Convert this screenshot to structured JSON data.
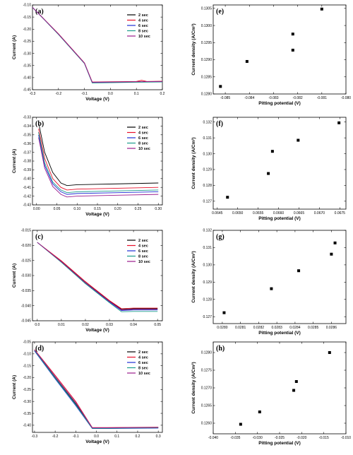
{
  "colors": {
    "2 sec": "#000000",
    "4 sec": "#e8102a",
    "6 sec": "#1f2fd6",
    "8 sec": "#1c9c8c",
    "10 sec": "#9b1c8c"
  },
  "chart_data": [
    {
      "id": "a",
      "panel_label": "(a)",
      "type": "line",
      "xlabel": "Voltage (V)",
      "ylabel": "Current (A)",
      "xlim": [
        -0.3,
        0.2
      ],
      "ylim": [
        -0.45,
        -0.1
      ],
      "xticks": [
        -0.3,
        -0.2,
        -0.1,
        0.0,
        0.1,
        0.2
      ],
      "xticklabels": [
        "-0.3",
        "-0.2",
        "-0.1",
        "0.0",
        "0.1",
        "0.2"
      ],
      "yticks": [
        -0.45,
        -0.4,
        -0.35,
        -0.3,
        -0.25,
        -0.2,
        -0.15,
        -0.1
      ],
      "yticklabels": [
        "-0.45",
        "-0.40",
        "-0.35",
        "-0.30",
        "-0.25",
        "-0.20",
        "-0.15",
        "-0.10"
      ],
      "legend": {
        "position": "top-right"
      },
      "series": [
        {
          "name": "2 sec",
          "x": [
            -0.3,
            -0.2,
            -0.1,
            -0.07,
            0.0,
            0.1,
            0.2
          ],
          "y": [
            -0.11,
            -0.22,
            -0.34,
            -0.42,
            -0.419,
            -0.417,
            -0.416
          ]
        },
        {
          "name": "4 sec",
          "x": [
            -0.3,
            -0.2,
            -0.1,
            -0.07,
            0.0,
            0.1,
            0.12,
            0.14,
            0.2
          ],
          "y": [
            -0.11,
            -0.219,
            -0.339,
            -0.418,
            -0.417,
            -0.416,
            -0.411,
            -0.416,
            -0.415
          ]
        },
        {
          "name": "6 sec",
          "x": [
            -0.3,
            -0.2,
            -0.1,
            -0.07,
            0.0,
            0.1,
            0.2
          ],
          "y": [
            -0.11,
            -0.221,
            -0.341,
            -0.421,
            -0.42,
            -0.418,
            -0.417
          ]
        },
        {
          "name": "8 sec",
          "x": [
            -0.3,
            -0.2,
            -0.1,
            -0.07,
            0.0,
            0.1,
            0.2
          ],
          "y": [
            -0.11,
            -0.222,
            -0.342,
            -0.422,
            -0.421,
            -0.419,
            -0.418
          ]
        },
        {
          "name": "10 sec",
          "x": [
            -0.3,
            -0.2,
            -0.1,
            -0.07,
            0.0,
            0.1,
            0.2
          ],
          "y": [
            -0.11,
            -0.22,
            -0.34,
            -0.419,
            -0.418,
            -0.417,
            -0.416
          ]
        }
      ]
    },
    {
      "id": "e",
      "panel_label": "(e)",
      "type": "scatter",
      "xlabel": "Pitting potential (V)",
      "ylabel": "Current density (A/Cm²)",
      "xlim": [
        -0.0855,
        -0.08
      ],
      "ylim": [
        0.128,
        0.1306
      ],
      "xticks": [
        -0.085,
        -0.084,
        -0.083,
        -0.082,
        -0.081,
        -0.08
      ],
      "xticklabels": [
        "-0.085",
        "-0.084",
        "-0.083",
        "-0.082",
        "-0.081",
        "-0.080"
      ],
      "yticks": [
        0.128,
        0.1285,
        0.129,
        0.1295,
        0.13,
        0.1305
      ],
      "yticklabels": [
        "0.1280",
        "0.1285",
        "0.1290",
        "0.1295",
        "0.1300",
        "0.1305"
      ],
      "series": [
        {
          "x": [
            -0.0852,
            -0.0841,
            -0.0822,
            -0.0822,
            -0.081
          ],
          "y": [
            0.12822,
            0.12895,
            0.12928,
            0.12975,
            0.13048
          ]
        }
      ]
    },
    {
      "id": "b",
      "panel_label": "(b)",
      "type": "line",
      "xlabel": "Voltage (V)",
      "ylabel": "Current (A)",
      "xlim": [
        -0.01,
        0.31
      ],
      "ylim": [
        -0.43,
        -0.33
      ],
      "xticks": [
        0.0,
        0.05,
        0.1,
        0.15,
        0.2,
        0.25,
        0.3
      ],
      "xticklabels": [
        "0.00",
        "0.05",
        "0.10",
        "0.15",
        "0.20",
        "0.25",
        "0.30"
      ],
      "yticks": [
        -0.43,
        -0.42,
        -0.41,
        -0.4,
        -0.39,
        -0.38,
        -0.37,
        -0.36,
        -0.35,
        -0.34,
        -0.33
      ],
      "yticklabels": [
        "-0.43",
        "-0.42",
        "-0.41",
        "-0.40",
        "-0.39",
        "-0.38",
        "-0.37",
        "-0.36",
        "-0.35",
        "-0.34",
        "-0.33"
      ],
      "legend": {
        "position": "top-right"
      },
      "series": [
        {
          "name": "2 sec",
          "x": [
            0.005,
            0.02,
            0.04,
            0.06,
            0.075,
            0.1,
            0.2,
            0.3
          ],
          "y": [
            -0.336,
            -0.37,
            -0.393,
            -0.405,
            -0.408,
            -0.407,
            -0.406,
            -0.405
          ]
        },
        {
          "name": "4 sec",
          "x": [
            0.005,
            0.02,
            0.04,
            0.06,
            0.075,
            0.1,
            0.2,
            0.3
          ],
          "y": [
            -0.343,
            -0.377,
            -0.4,
            -0.41,
            -0.413,
            -0.412,
            -0.411,
            -0.41
          ]
        },
        {
          "name": "6 sec",
          "x": [
            0.005,
            0.02,
            0.04,
            0.06,
            0.075,
            0.1,
            0.2,
            0.3
          ],
          "y": [
            -0.35,
            -0.385,
            -0.406,
            -0.415,
            -0.418,
            -0.417,
            -0.416,
            -0.415
          ]
        },
        {
          "name": "8 sec",
          "x": [
            0.005,
            0.02,
            0.04,
            0.06,
            0.075,
            0.1,
            0.2,
            0.3
          ],
          "y": [
            -0.347,
            -0.382,
            -0.404,
            -0.413,
            -0.416,
            -0.415,
            -0.414,
            -0.413
          ]
        },
        {
          "name": "10 sec",
          "x": [
            0.005,
            0.02,
            0.04,
            0.06,
            0.075,
            0.1,
            0.2,
            0.3
          ],
          "y": [
            -0.353,
            -0.388,
            -0.409,
            -0.418,
            -0.421,
            -0.42,
            -0.419,
            -0.418
          ]
        }
      ]
    },
    {
      "id": "f",
      "panel_label": "(f)",
      "type": "scatter",
      "xlabel": "Pitting potential (V)",
      "ylabel": "Current density (A/Cm²)",
      "xlim": [
        0.0644,
        0.06765
      ],
      "ylim": [
        0.1265,
        0.1323
      ],
      "xticks": [
        0.0645,
        0.065,
        0.0655,
        0.066,
        0.0665,
        0.067,
        0.0675
      ],
      "xticklabels": [
        "0.0645",
        "0.0650",
        "0.0655",
        "0.0660",
        "0.0665",
        "0.0670",
        "0.0675"
      ],
      "yticks": [
        0.127,
        0.128,
        0.129,
        0.13,
        0.131,
        0.132
      ],
      "yticklabels": [
        "0.127",
        "0.128",
        "0.129",
        "0.130",
        "0.131",
        "0.132"
      ],
      "series": [
        {
          "x": [
            0.06475,
            0.06575,
            0.06585,
            0.06648,
            0.06748
          ],
          "y": [
            0.12725,
            0.12875,
            0.13015,
            0.13085,
            0.13195
          ]
        }
      ]
    },
    {
      "id": "c",
      "panel_label": "(c)",
      "type": "line",
      "xlabel": "Voltage (V)",
      "ylabel": "Current (A)",
      "xlim": [
        -0.002,
        0.052
      ],
      "ylim": [
        -0.045,
        -0.015
      ],
      "xticks": [
        0.0,
        0.01,
        0.02,
        0.03,
        0.04,
        0.05
      ],
      "xticklabels": [
        "0.0",
        "0.01",
        "0.02",
        "0.03",
        "0.04",
        "0.05"
      ],
      "yticks": [
        -0.045,
        -0.04,
        -0.035,
        -0.03,
        -0.025,
        -0.02,
        -0.015
      ],
      "yticklabels": [
        "-0.045",
        "-0.040",
        "-0.035",
        "-0.030",
        "-0.025",
        "-0.020",
        "-0.015"
      ],
      "legend": {
        "position": "top-right"
      },
      "series": [
        {
          "name": "2 sec",
          "x": [
            0.0,
            0.01,
            0.02,
            0.03,
            0.035,
            0.04,
            0.05
          ],
          "y": [
            -0.019,
            -0.0253,
            -0.0323,
            -0.0385,
            -0.0412,
            -0.041,
            -0.041
          ]
        },
        {
          "name": "4 sec",
          "x": [
            0.0,
            0.01,
            0.02,
            0.03,
            0.035,
            0.04,
            0.05
          ],
          "y": [
            -0.019,
            -0.0251,
            -0.032,
            -0.0383,
            -0.041,
            -0.0408,
            -0.0408
          ]
        },
        {
          "name": "6 sec",
          "x": [
            0.0,
            0.01,
            0.02,
            0.03,
            0.035,
            0.04,
            0.05
          ],
          "y": [
            -0.019,
            -0.0255,
            -0.0325,
            -0.0388,
            -0.0416,
            -0.0414,
            -0.0414
          ]
        },
        {
          "name": "8 sec",
          "x": [
            0.0,
            0.01,
            0.02,
            0.03,
            0.035,
            0.04,
            0.05
          ],
          "y": [
            -0.019,
            -0.0256,
            -0.0327,
            -0.039,
            -0.042,
            -0.0419,
            -0.0419
          ]
        },
        {
          "name": "10 sec",
          "x": [
            0.0,
            0.01,
            0.02,
            0.03,
            0.035,
            0.04,
            0.05
          ],
          "y": [
            -0.019,
            -0.0254,
            -0.0324,
            -0.0386,
            -0.0414,
            -0.0412,
            -0.0412
          ]
        }
      ]
    },
    {
      "id": "g",
      "panel_label": "(g)",
      "type": "scatter",
      "xlabel": "Pitting potential (V)",
      "ylabel": "Current density (A/Cm²)",
      "xlim": [
        0.02795,
        0.02868
      ],
      "ylim": [
        0.1266,
        0.132
      ],
      "xticks": [
        0.028,
        0.0281,
        0.0282,
        0.0283,
        0.0284,
        0.0285,
        0.0286
      ],
      "xticklabels": [
        "0.0280",
        "0.0281",
        "0.0282",
        "0.0283",
        "0.0284",
        "0.0285",
        "0.0286"
      ],
      "yticks": [
        0.127,
        0.128,
        0.129,
        0.13,
        0.131,
        0.132
      ],
      "yticklabels": [
        "0.127",
        "0.128",
        "0.129",
        "0.130",
        "0.131",
        "0.132"
      ],
      "series": [
        {
          "x": [
            0.02801,
            0.02827,
            0.02842,
            0.0286,
            0.02862
          ],
          "y": [
            0.12723,
            0.12862,
            0.12966,
            0.13062,
            0.13127
          ]
        }
      ]
    },
    {
      "id": "d",
      "panel_label": "(d)",
      "type": "line",
      "xlabel": "Voltage (V)",
      "ylabel": "Current (A)",
      "xlim": [
        -0.31,
        0.32
      ],
      "ylim": [
        -0.43,
        -0.05
      ],
      "xticks": [
        -0.3,
        -0.2,
        -0.1,
        0.0,
        0.1,
        0.2,
        0.3
      ],
      "xticklabels": [
        "-0.3",
        "-0.2",
        "-0.1",
        "0.0",
        "0.1",
        "0.2",
        "0.3"
      ],
      "yticks": [
        -0.4,
        -0.35,
        -0.3,
        -0.25,
        -0.2,
        -0.15,
        -0.1,
        -0.05
      ],
      "yticklabels": [
        "-0.40",
        "-0.35",
        "-0.30",
        "-0.25",
        "-0.20",
        "-0.15",
        "-0.10",
        "-0.05"
      ],
      "legend": {
        "position": "top-right"
      },
      "series": [
        {
          "name": "2 sec",
          "x": [
            -0.3,
            -0.2,
            -0.1,
            -0.02,
            0.05,
            0.15,
            0.3
          ],
          "y": [
            -0.085,
            -0.2,
            -0.31,
            -0.412,
            -0.412,
            -0.411,
            -0.41
          ]
        },
        {
          "name": "4 sec",
          "x": [
            -0.3,
            -0.2,
            -0.1,
            -0.02,
            0.05,
            0.15,
            0.3
          ],
          "y": [
            -0.082,
            -0.19,
            -0.3,
            -0.41,
            -0.41,
            -0.409,
            -0.408
          ]
        },
        {
          "name": "6 sec",
          "x": [
            -0.3,
            -0.2,
            -0.1,
            -0.02,
            0.05,
            0.15,
            0.3
          ],
          "y": [
            -0.088,
            -0.205,
            -0.318,
            -0.414,
            -0.414,
            -0.413,
            -0.412
          ]
        },
        {
          "name": "8 sec",
          "x": [
            -0.3,
            -0.2,
            -0.1,
            -0.02,
            0.05,
            0.15,
            0.3
          ],
          "y": [
            -0.086,
            -0.202,
            -0.314,
            -0.413,
            -0.413,
            -0.412,
            -0.411
          ]
        },
        {
          "name": "10 sec",
          "x": [
            -0.3,
            -0.2,
            -0.1,
            -0.02,
            0.05,
            0.15,
            0.3
          ],
          "y": [
            -0.083,
            -0.195,
            -0.305,
            -0.411,
            -0.411,
            -0.41,
            -0.409
          ]
        }
      ]
    },
    {
      "id": "h",
      "panel_label": "(h)",
      "type": "scatter",
      "xlabel": "Pitting potential (V)",
      "ylabel": "Current density (A/Cm²)",
      "xlim": [
        -0.04,
        -0.01
      ],
      "ylim": [
        0.1257,
        0.1283
      ],
      "xticks": [
        -0.04,
        -0.035,
        -0.03,
        -0.025,
        -0.02,
        -0.015,
        -0.01
      ],
      "xticklabels": [
        "-0.040",
        "-0.035",
        "-0.030",
        "-0.025",
        "-0.020",
        "-0.015",
        "-0.010"
      ],
      "yticks": [
        0.126,
        0.1265,
        0.127,
        0.1275,
        0.128
      ],
      "yticklabels": [
        "0.1260",
        "0.1265",
        "0.1270",
        "0.1275",
        "0.1280"
      ],
      "series": [
        {
          "x": [
            -0.0338,
            -0.0295,
            -0.0218,
            -0.0212,
            -0.0137
          ],
          "y": [
            0.12597,
            0.12632,
            0.12693,
            0.12718,
            0.128
          ]
        }
      ]
    }
  ]
}
